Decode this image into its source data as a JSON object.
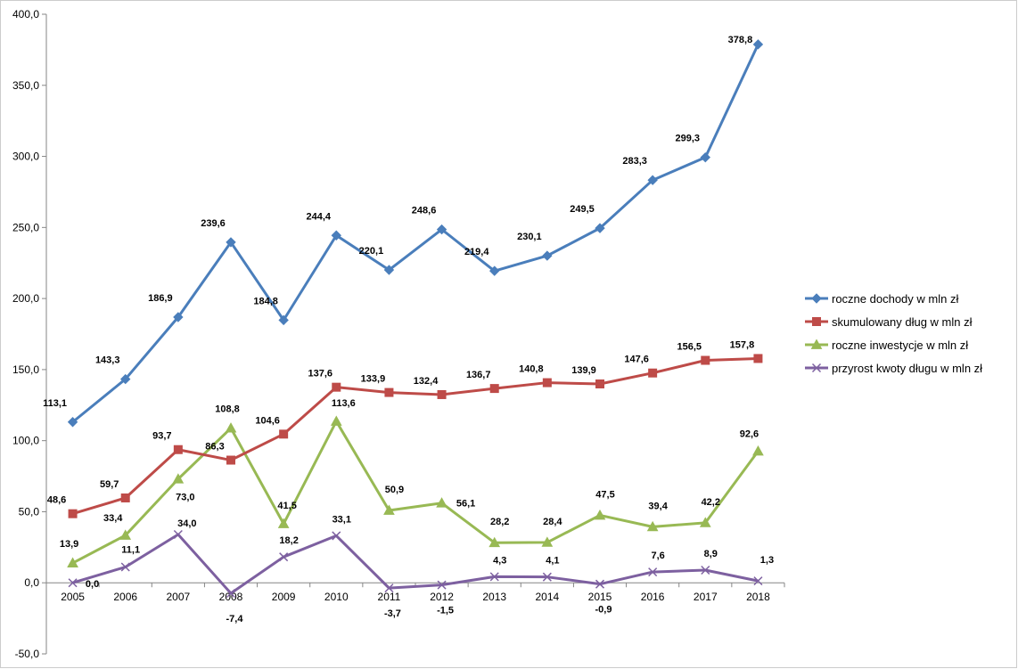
{
  "chart_data": {
    "type": "line",
    "title": "",
    "xlabel": "",
    "ylabel": "",
    "ylim": [
      -50,
      400
    ],
    "ytick_step": 50,
    "grid": false,
    "legend_position": "right",
    "categories": [
      "2005",
      "2006",
      "2007",
      "2008",
      "2009",
      "2010",
      "2011",
      "2012",
      "2013",
      "2014",
      "2015",
      "2016",
      "2017",
      "2018"
    ],
    "ytick_labels": [
      "-50,0",
      "0,0",
      "50,0",
      "100,0",
      "150,0",
      "200,0",
      "250,0",
      "300,0",
      "350,0",
      "400,0"
    ],
    "series": [
      {
        "name": "roczne dochody  w mln zł",
        "color": "#4a7ebb",
        "marker": "diamond",
        "values": [
          113.1,
          143.3,
          186.9,
          239.6,
          184.8,
          244.4,
          220.1,
          248.6,
          219.4,
          230.1,
          249.5,
          283.3,
          299.3,
          378.8
        ],
        "labels": [
          "113,1",
          "143,3",
          "186,9",
          "239,6",
          "184,8",
          "244,4",
          "220,1",
          "248,6",
          "219,4",
          "230,1",
          "249,5",
          "283,3",
          "299,3",
          "378,8"
        ]
      },
      {
        "name": "skumulowany dług w mln zł",
        "color": "#be4b48",
        "marker": "square",
        "values": [
          48.6,
          59.7,
          93.7,
          86.3,
          104.6,
          137.6,
          133.9,
          132.4,
          136.7,
          140.8,
          139.9,
          147.6,
          156.5,
          157.8
        ],
        "labels": [
          "48,6",
          "59,7",
          "93,7",
          "86,3",
          "104,6",
          "137,6",
          "133,9",
          "132,4",
          "136,7",
          "140,8",
          "139,9",
          "147,6",
          "156,5",
          "157,8"
        ]
      },
      {
        "name": "roczne inwestycje w mln zł",
        "color": "#98b954",
        "marker": "triangle",
        "values": [
          13.9,
          33.4,
          73.0,
          108.8,
          41.5,
          113.6,
          50.9,
          56.1,
          28.2,
          28.4,
          47.5,
          39.4,
          42.2,
          92.6
        ],
        "labels": [
          "13,9",
          "33,4",
          "73,0",
          "108,8",
          "41,5",
          "113,6",
          "50,9",
          "56,1",
          "28,2",
          "28,4",
          "47,5",
          "39,4",
          "42,2",
          "92,6"
        ]
      },
      {
        "name": "przyrost kwoty długu w mln zł",
        "color": "#7d60a0",
        "marker": "x",
        "values": [
          0.0,
          11.1,
          34.0,
          -7.4,
          18.2,
          33.1,
          -3.7,
          -1.5,
          4.3,
          4.1,
          -0.9,
          7.6,
          8.9,
          1.3
        ],
        "labels": [
          "0,0",
          "11,1",
          "34,0",
          "-7,4",
          "18,2",
          "33,1",
          "-3,7",
          "-1,5",
          "4,3",
          "4,1",
          "-0,9",
          "7,6",
          "8,9",
          "1,3"
        ]
      }
    ]
  }
}
